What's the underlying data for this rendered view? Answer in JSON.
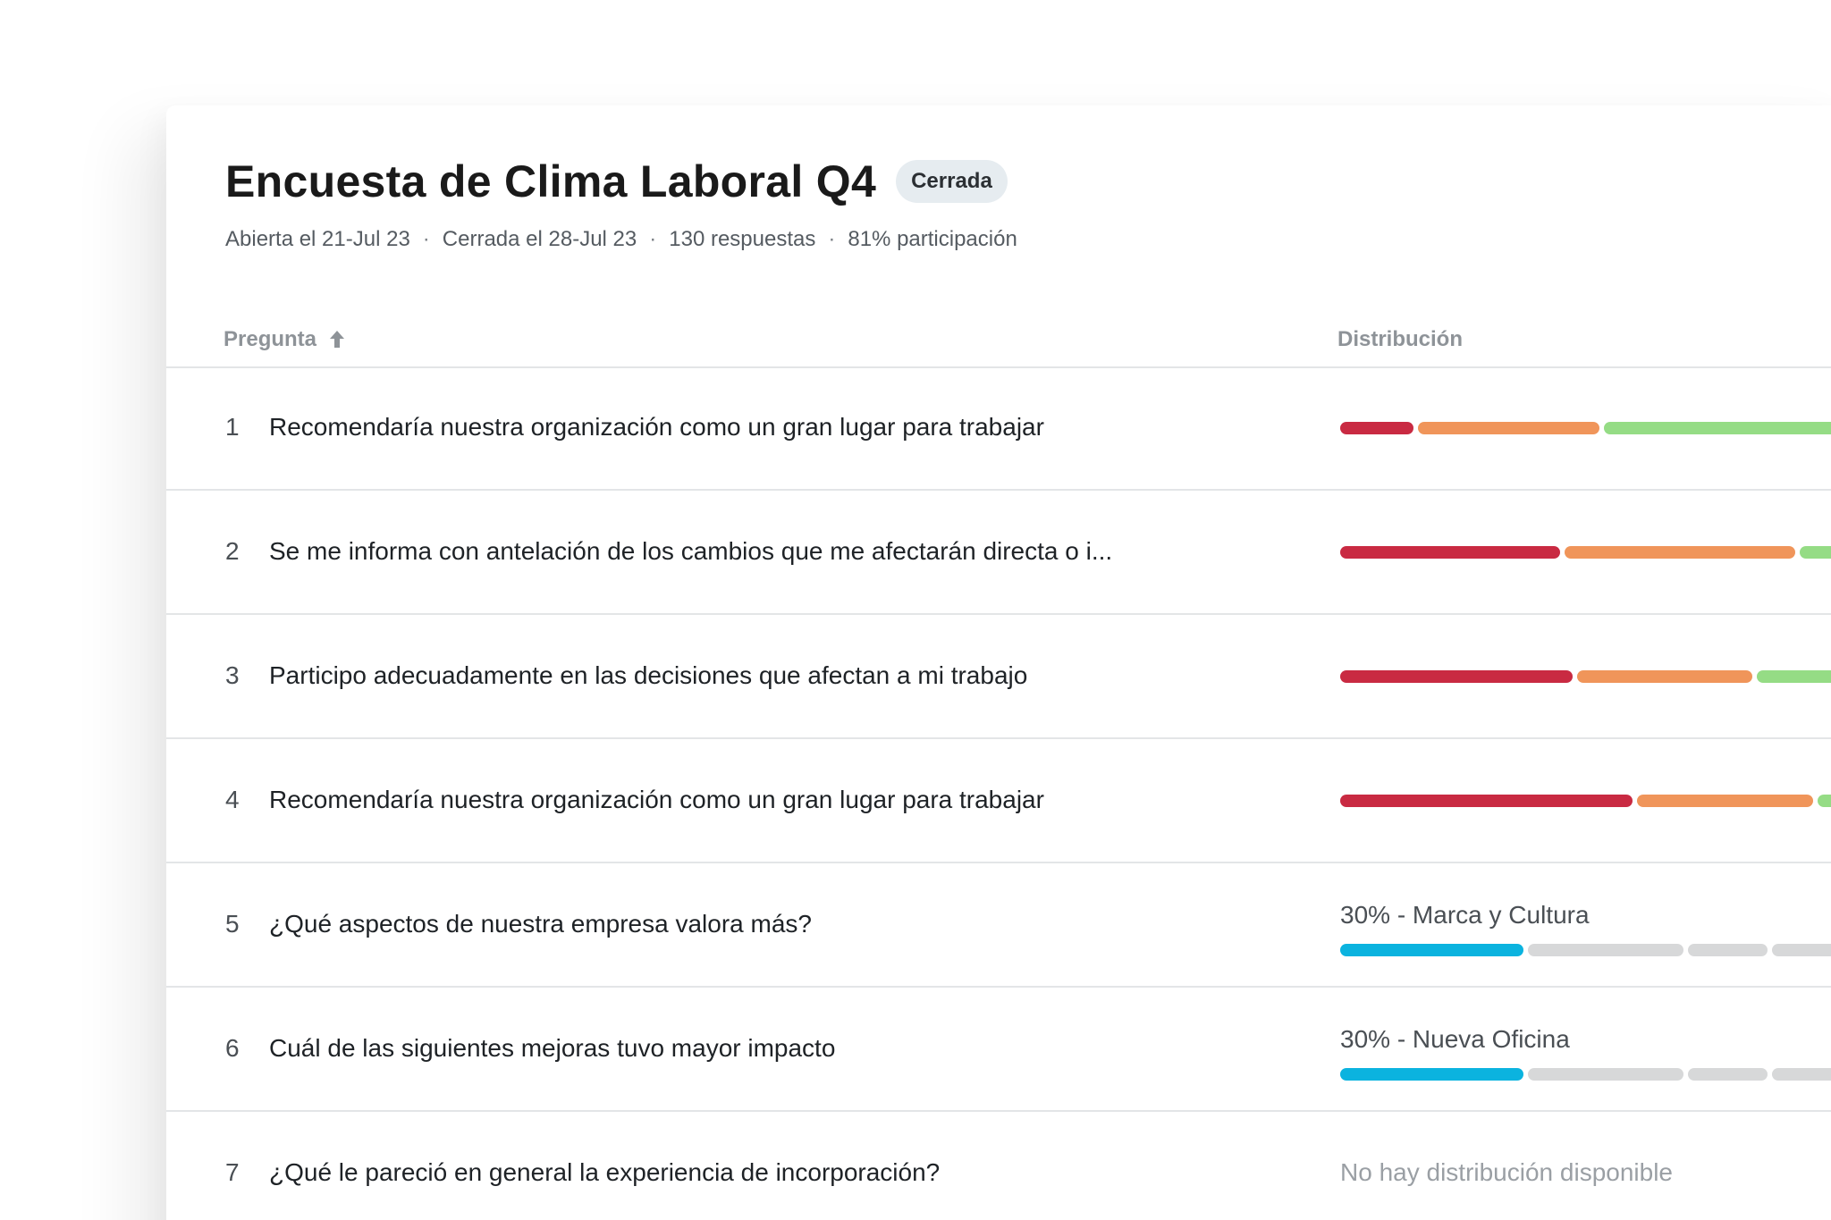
{
  "survey": {
    "title": "Encuesta de Clima Laboral Q4",
    "status_badge": "Cerrada",
    "opened": "Abierta el 21-Jul 23",
    "closed": "Cerrada el 28-Jul 23",
    "responses": "130 respuestas",
    "participation": "81% participación",
    "separator": "·"
  },
  "table": {
    "col_question": "Pregunta",
    "col_distribution": "Distribución",
    "rows": [
      {
        "number": "1",
        "question": "Recomendaría nuestra organización como un gran lugar para trabajar",
        "kind": "scale"
      },
      {
        "number": "2",
        "question": "Se me informa con antelación de los cambios que me afectarán directa o i...",
        "kind": "scale"
      },
      {
        "number": "3",
        "question": "Participo adecuadamente en las decisiones que afectan a mi trabajo",
        "kind": "scale"
      },
      {
        "number": "4",
        "question": "Recomendaría nuestra organización como un gran lugar para trabajar",
        "kind": "scale"
      },
      {
        "number": "5",
        "question": "¿Qué aspectos de nuestra empresa valora más?",
        "kind": "choice",
        "top_choice": "30% - Marca y Cultura"
      },
      {
        "number": "6",
        "question": "Cuál de las siguientes mejoras tuvo mayor impacto",
        "kind": "choice",
        "top_choice": "30% - Nueva Oficina"
      },
      {
        "number": "7",
        "question": "¿Qué le pareció en general la experiencia de incorporación?",
        "kind": "none",
        "no_distribution": "No hay distribución disponible"
      }
    ]
  },
  "colors": {
    "negative": "#c92a42",
    "neutral": "#f0955a",
    "positive": "#95dc85",
    "top_choice": "#0bb3df",
    "other_choice": "#d7d8d9"
  },
  "icons": {
    "sort": "arrow-up-icon"
  }
}
